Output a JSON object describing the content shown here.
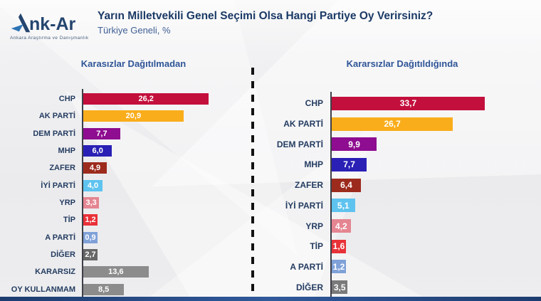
{
  "logo": {
    "name_rest": "nk-Ar",
    "tagline": "Ankara Araştırma ve Danışmanlık",
    "colors": {
      "dark": "#25456f",
      "accent": "#2e74b5"
    }
  },
  "header": {
    "title": "Yarın Milletvekili Genel Seçimi Olsa Hangi Partiye Oy Verirsiniz?",
    "subtitle": "Türkiye Geneli, %"
  },
  "chart_data": [
    {
      "type": "bar",
      "orientation": "horizontal",
      "title": "Karasızlar Dağıtılmadan",
      "categories": [
        "CHP",
        "AK PARTİ",
        "DEM PARTİ",
        "MHP",
        "ZAFER",
        "İYİ PARTİ",
        "YRP",
        "TİP",
        "A PARTİ",
        "DİĞER",
        "KARARSIZ",
        "OY KULLANMAM"
      ],
      "values": [
        26.2,
        20.9,
        7.7,
        6.0,
        4.9,
        4.0,
        3.3,
        1.2,
        0.9,
        2.7,
        13.6,
        8.5
      ],
      "labels": [
        "26,2",
        "20,9",
        "7,7",
        "6,0",
        "4,9",
        "4,0",
        "3,3",
        "1,2",
        "0,9",
        "2,7",
        "13,6",
        "8,5"
      ],
      "colors": [
        "#C30F3C",
        "#FAAD1B",
        "#8E0D90",
        "#2A20B5",
        "#9C2B1D",
        "#5EC3EF",
        "#E48591",
        "#E93138",
        "#7FA1D8",
        "#676767",
        "#8C8C8C",
        "#8C8C8C"
      ],
      "xmax": 34,
      "xlabel": "",
      "ylabel": "",
      "grid": false,
      "value_labels": "inside-center, white bold"
    },
    {
      "type": "bar",
      "orientation": "horizontal",
      "title": "Kararsızlar Dağıtıldığında",
      "categories": [
        "CHP",
        "AK PARTİ",
        "DEM PARTİ",
        "MHP",
        "ZAFER",
        "İYİ PARTİ",
        "YRP",
        "TİP",
        "A PARTİ",
        "DİĞER"
      ],
      "values": [
        33.7,
        26.7,
        9.9,
        7.7,
        6.4,
        5.1,
        4.2,
        1.6,
        1.2,
        3.5
      ],
      "labels": [
        "33,7",
        "26,7",
        "9,9",
        "7,7",
        "6,4",
        "5,1",
        "4,2",
        "1,6",
        "1,2",
        "3,5"
      ],
      "colors": [
        "#C30F3C",
        "#FAAD1B",
        "#8E0D90",
        "#2A20B5",
        "#9C2B1D",
        "#5EC3EF",
        "#E48591",
        "#E93138",
        "#7FA1D8",
        "#7A7A7A"
      ],
      "xmax": 45,
      "xlabel": "",
      "ylabel": "",
      "grid": false,
      "value_labels": "inside-center, white bold"
    }
  ]
}
